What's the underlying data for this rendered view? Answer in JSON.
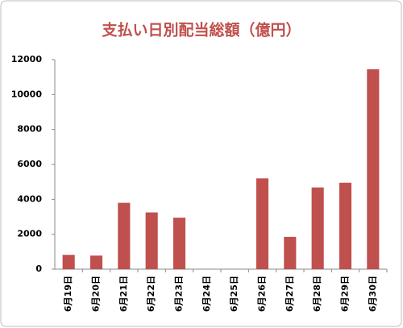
{
  "chart_data": {
    "type": "bar",
    "title": "支払い日別配当総額（億円）",
    "categories": [
      "6月19日",
      "6月20日",
      "6月21日",
      "6月22日",
      "6月23日",
      "6月24日",
      "6月25日",
      "6月26日",
      "6月27日",
      "6月28日",
      "6月29日",
      "6月30日"
    ],
    "values": [
      820,
      780,
      3800,
      3250,
      2950,
      null,
      null,
      5200,
      1850,
      4680,
      4950,
      11450
    ],
    "color": "#c0504d",
    "ylim": [
      0,
      12000
    ],
    "yticks": [
      0,
      2000,
      4000,
      6000,
      8000,
      10000,
      12000
    ],
    "grid": false
  }
}
